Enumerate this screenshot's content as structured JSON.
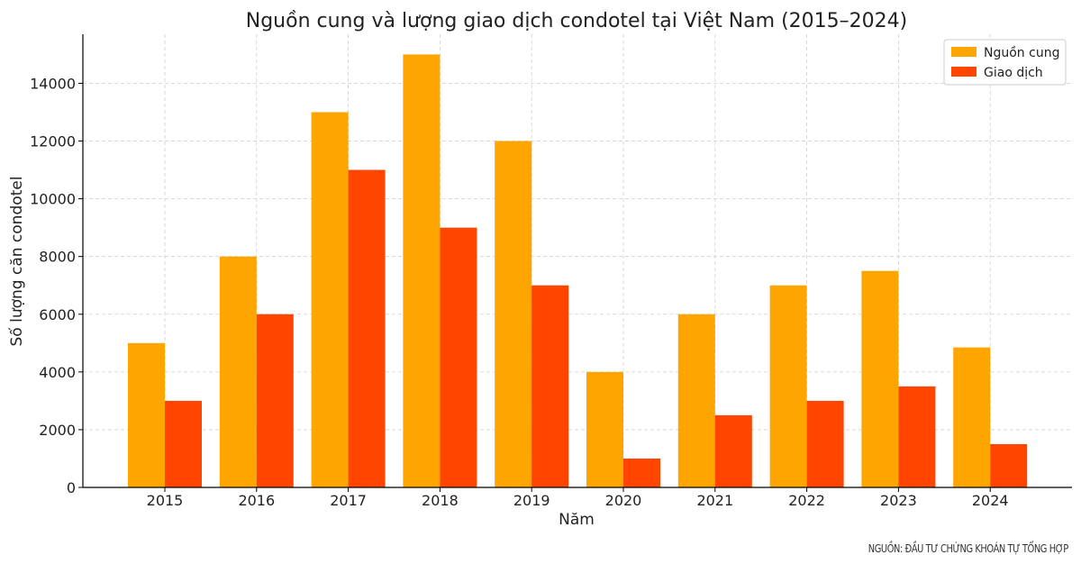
{
  "chart_data": {
    "type": "bar",
    "title": "Nguồn cung và lượng giao dịch condotel tại Việt Nam (2015–2024)",
    "xlabel": "Năm",
    "ylabel": "Số lượng căn condotel",
    "categories": [
      "2015",
      "2016",
      "2017",
      "2018",
      "2019",
      "2020",
      "2021",
      "2022",
      "2023",
      "2024"
    ],
    "series": [
      {
        "name": "Nguồn cung",
        "color": "#FFA500",
        "values": [
          5000,
          8000,
          13000,
          15000,
          12000,
          4000,
          6000,
          7000,
          7500,
          4850
        ]
      },
      {
        "name": "Giao dịch",
        "color": "#FF4500",
        "values": [
          3000,
          6000,
          11000,
          9000,
          7000,
          1000,
          2500,
          3000,
          3500,
          1500
        ]
      }
    ],
    "ylim": [
      0,
      15700
    ],
    "yticks": [
      0,
      2000,
      4000,
      6000,
      8000,
      10000,
      12000,
      14000
    ],
    "grid": true,
    "legend": "top-right"
  },
  "source_note": "NGUỒN: ĐẦU TƯ CHỨNG KHOÁN TỰ TỔNG HỢP"
}
